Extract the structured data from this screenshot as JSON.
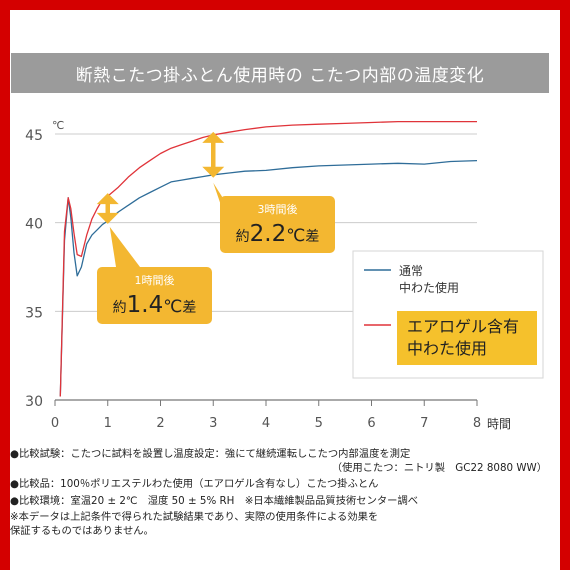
{
  "colors": {
    "frame": "#d40000",
    "title_bg": "#9b9b9b",
    "normal": "#2f6d99",
    "aerogel": "#e0343a",
    "callout": "#f3b731",
    "legend_highlight": "#f5c12c",
    "grid": "#cccccc"
  },
  "title": "断熱こたつ掛ふとん使用時の こたつ内部の温度変化",
  "chart_data": {
    "type": "line",
    "ylabel": "℃",
    "xlabel": "時間",
    "xlim": [
      0,
      8
    ],
    "ylim": [
      30,
      45
    ],
    "x_ticks": [
      "0",
      "1",
      "2",
      "3",
      "4",
      "5",
      "6",
      "7",
      "8"
    ],
    "y_ticks": [
      "30",
      "35",
      "40",
      "45"
    ],
    "grid": true,
    "legend_position": "right",
    "series": [
      {
        "name": "通常\n中わた使用",
        "color": "#2f6d99",
        "points": [
          [
            0.1,
            30.2
          ],
          [
            0.18,
            39
          ],
          [
            0.25,
            41.4
          ],
          [
            0.3,
            40.3
          ],
          [
            0.36,
            38.3
          ],
          [
            0.42,
            37
          ],
          [
            0.5,
            37.5
          ],
          [
            0.6,
            38.8
          ],
          [
            0.7,
            39.3
          ],
          [
            0.8,
            39.6
          ],
          [
            0.9,
            39.9
          ],
          [
            1.0,
            40.1
          ],
          [
            1.2,
            40.6
          ],
          [
            1.4,
            41.0
          ],
          [
            1.6,
            41.4
          ],
          [
            1.8,
            41.7
          ],
          [
            2.0,
            42.0
          ],
          [
            2.2,
            42.3
          ],
          [
            2.4,
            42.4
          ],
          [
            2.6,
            42.5
          ],
          [
            2.8,
            42.6
          ],
          [
            3.0,
            42.7
          ],
          [
            3.3,
            42.8
          ],
          [
            3.6,
            42.9
          ],
          [
            4.0,
            42.95
          ],
          [
            4.5,
            43.1
          ],
          [
            5.0,
            43.2
          ],
          [
            5.5,
            43.25
          ],
          [
            6.0,
            43.3
          ],
          [
            6.5,
            43.35
          ],
          [
            7.0,
            43.3
          ],
          [
            7.5,
            43.45
          ],
          [
            8.0,
            43.5
          ]
        ]
      },
      {
        "name": "エアロゲル含有\n中わた使用",
        "color": "#e0343a",
        "points": [
          [
            0.1,
            30.2
          ],
          [
            0.18,
            39.5
          ],
          [
            0.25,
            41.4
          ],
          [
            0.3,
            40.8
          ],
          [
            0.36,
            39.4
          ],
          [
            0.42,
            38.2
          ],
          [
            0.5,
            38.1
          ],
          [
            0.6,
            39.3
          ],
          [
            0.7,
            40.2
          ],
          [
            0.8,
            40.8
          ],
          [
            0.9,
            41.3
          ],
          [
            1.0,
            41.5
          ],
          [
            1.2,
            42.0
          ],
          [
            1.4,
            42.6
          ],
          [
            1.6,
            43.1
          ],
          [
            1.8,
            43.5
          ],
          [
            2.0,
            43.9
          ],
          [
            2.2,
            44.2
          ],
          [
            2.4,
            44.4
          ],
          [
            2.6,
            44.6
          ],
          [
            2.8,
            44.8
          ],
          [
            3.0,
            44.95
          ],
          [
            3.3,
            45.1
          ],
          [
            3.6,
            45.25
          ],
          [
            4.0,
            45.4
          ],
          [
            4.5,
            45.5
          ],
          [
            5.0,
            45.55
          ],
          [
            5.5,
            45.6
          ],
          [
            6.0,
            45.65
          ],
          [
            6.5,
            45.7
          ],
          [
            7.0,
            45.7
          ],
          [
            7.5,
            45.7
          ],
          [
            8.0,
            45.7
          ]
        ]
      }
    ],
    "annotations": [
      {
        "x": 1,
        "label_top": "1時間後",
        "prefix": "約",
        "value": "1.4",
        "unit": "℃差"
      },
      {
        "x": 3,
        "label_top": "3時間後",
        "prefix": "約",
        "value": "2.2",
        "unit": "℃差"
      }
    ]
  },
  "notes": [
    "●比較試験：こたつに試料を設置し温度設定：強にて継続運転しこたつ内部温度を測定",
    "（使用こたつ：ニトリ製　GC22 8080 WW）",
    "●比較品：100％ポリエステルわた使用（エアロゲル含有なし）こたつ掛ふとん",
    "●比較環境：室温20 ± 2℃　湿度 50 ± 5% RH　※日本繊維製品品質技術センター調べ",
    "※本データは上記条件で得られた試験結果であり、実際の使用条件による効果を",
    "保証するものではありません。"
  ]
}
